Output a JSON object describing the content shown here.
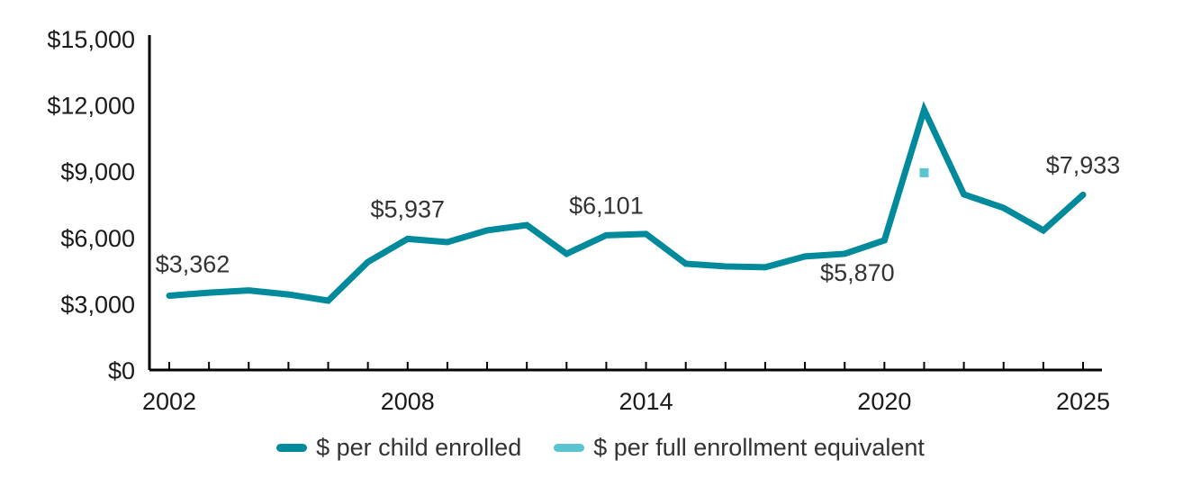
{
  "chart_data": {
    "type": "line",
    "title": "",
    "xlabel": "",
    "ylabel": "",
    "ylim": [
      0,
      15000
    ],
    "xlim": [
      2002,
      2025
    ],
    "y_ticks": [
      0,
      3000,
      6000,
      9000,
      12000,
      15000
    ],
    "y_tick_labels": [
      "$0",
      "$3,000",
      "$6,000",
      "$9,000",
      "$12,000",
      "$15,000"
    ],
    "x_tick_labels": [
      {
        "year": 2002,
        "label": "2002"
      },
      {
        "year": 2008,
        "label": "2008"
      },
      {
        "year": 2014,
        "label": "2014"
      },
      {
        "year": 2020,
        "label": "2020"
      },
      {
        "year": 2025,
        "label": "2025"
      }
    ],
    "x": [
      2002,
      2003,
      2004,
      2005,
      2006,
      2007,
      2008,
      2009,
      2010,
      2011,
      2012,
      2013,
      2014,
      2015,
      2016,
      2017,
      2018,
      2019,
      2020,
      2021,
      2022,
      2023,
      2024,
      2025
    ],
    "grid": false,
    "legend_position": "bottom-center",
    "series": [
      {
        "name": "$ per child enrolled",
        "color": "#008A9B",
        "style": "line",
        "values": [
          3362,
          3500,
          3600,
          3420,
          3140,
          4890,
          5937,
          5790,
          6320,
          6560,
          5260,
          6101,
          6160,
          4810,
          4690,
          4650,
          5140,
          5260,
          5870,
          11780,
          7950,
          7340,
          6320,
          7933
        ]
      },
      {
        "name": "$ per full enrollment equivalent",
        "color": "#5BC4D1",
        "style": "marker",
        "points": [
          {
            "x": 2021,
            "y": 8930
          }
        ]
      }
    ],
    "annotations": [
      {
        "x": 2002,
        "y": 3362,
        "text": "$3,362",
        "position": "above"
      },
      {
        "x": 2008,
        "y": 5937,
        "text": "$5,937",
        "position": "above"
      },
      {
        "x": 2013,
        "y": 6101,
        "text": "$6,101",
        "position": "above"
      },
      {
        "x": 2020,
        "y": 5870,
        "text": "$5,870",
        "position": "below-left"
      },
      {
        "x": 2025,
        "y": 7933,
        "text": "$7,933",
        "position": "above"
      }
    ]
  }
}
